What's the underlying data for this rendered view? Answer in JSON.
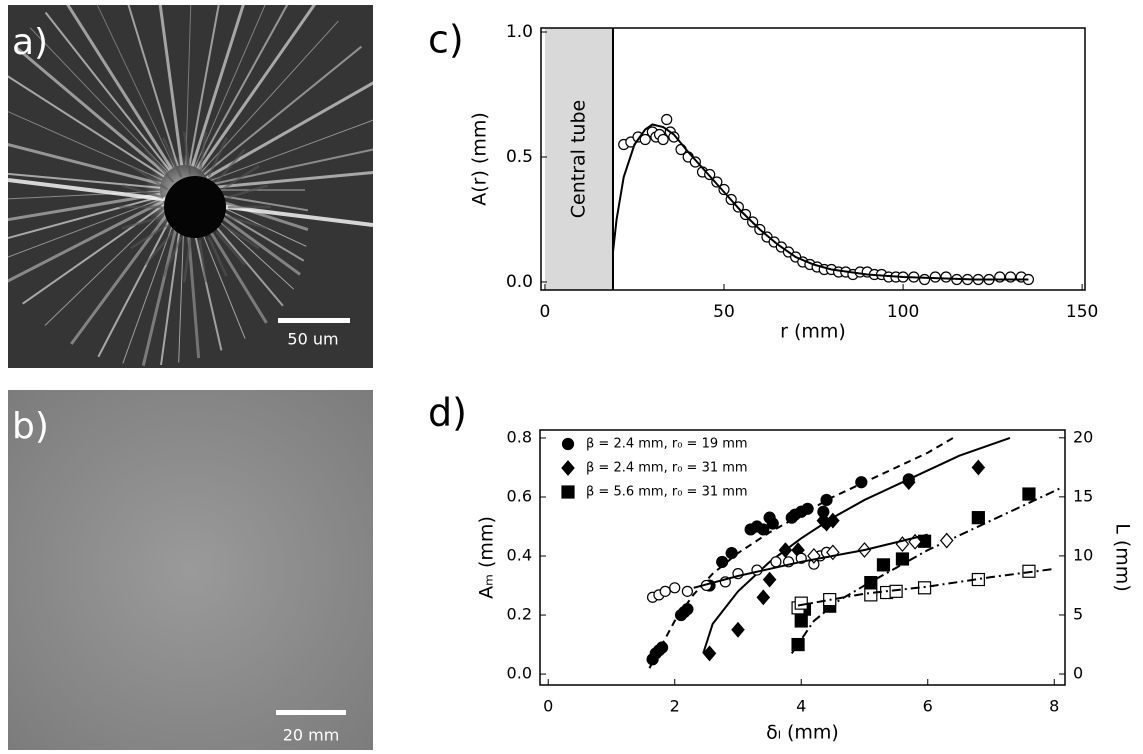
{
  "panels": {
    "a": {
      "label": "a)",
      "scale_bar": "50 um"
    },
    "b": {
      "label": "b)",
      "scale_bar": "20 mm"
    }
  },
  "chart_data": [
    {
      "type": "scatter",
      "panel_label": "c)",
      "xlabel": "r (mm)",
      "ylabel": "A(r) (mm)",
      "xlim": [
        -1.1,
        150.8
      ],
      "xticks": [
        0,
        50,
        100,
        150
      ],
      "ylim": [
        -0.032,
        1.016
      ],
      "yticks": [
        {
          "value": 0,
          "label": "0.0"
        },
        0.5,
        {
          "value": 1,
          "label": "1.0"
        }
      ],
      "shaded_region": {
        "label": "Central tube",
        "x": [
          0,
          19
        ]
      },
      "series": [
        {
          "style": "markers",
          "marker": "circle",
          "filled": false,
          "color": "#000000",
          "x": [
            22,
            24,
            26,
            28,
            30,
            31,
            32,
            33,
            34,
            35,
            36,
            38,
            40,
            42,
            44,
            46,
            48,
            50,
            52,
            54,
            56,
            58,
            60,
            62,
            64,
            66,
            68,
            70,
            72,
            74,
            76,
            78,
            80,
            82,
            84,
            86,
            88,
            90,
            92,
            94,
            96,
            98,
            100,
            103,
            106,
            109,
            112,
            115,
            118,
            121,
            124,
            127,
            130,
            133,
            135
          ],
          "values": [
            0.55,
            0.56,
            0.58,
            0.57,
            0.6,
            0.58,
            0.59,
            0.57,
            0.65,
            0.6,
            0.58,
            0.53,
            0.5,
            0.48,
            0.44,
            0.43,
            0.4,
            0.37,
            0.33,
            0.3,
            0.27,
            0.24,
            0.21,
            0.18,
            0.16,
            0.14,
            0.12,
            0.1,
            0.08,
            0.07,
            0.06,
            0.05,
            0.05,
            0.04,
            0.04,
            0.03,
            0.04,
            0.04,
            0.03,
            0.03,
            0.02,
            0.02,
            0.02,
            0.02,
            0.01,
            0.02,
            0.02,
            0.01,
            0.01,
            0.01,
            0.01,
            0.02,
            0.02,
            0.02,
            0.01
          ]
        },
        {
          "style": "line",
          "dash": "solid",
          "color": "#000000",
          "x": [
            19,
            20,
            22,
            25,
            28,
            30,
            33,
            36,
            40,
            45,
            50,
            55,
            60,
            65,
            70,
            75,
            80,
            90,
            100,
            110,
            120,
            135
          ],
          "values": [
            0.12,
            0.25,
            0.42,
            0.55,
            0.61,
            0.63,
            0.62,
            0.59,
            0.52,
            0.44,
            0.36,
            0.28,
            0.21,
            0.15,
            0.1,
            0.07,
            0.05,
            0.03,
            0.02,
            0.015,
            0.01,
            0.01
          ]
        }
      ]
    },
    {
      "type": "scatter",
      "panel_label": "d)",
      "xlabel": "δₗ (mm)",
      "ylabel": "Aₘ (mm)",
      "y2label": "L (mm)",
      "xlim": [
        -0.13,
        8.17
      ],
      "xticks": [
        0,
        2,
        4,
        6,
        8
      ],
      "ylim": [
        -0.037,
        0.827
      ],
      "yticks": [
        {
          "value": 0,
          "label": "0.0"
        },
        0.2,
        0.4,
        0.6,
        0.8
      ],
      "y2lim": [
        -0.93,
        20.66
      ],
      "y2ticks": [
        0,
        5,
        10,
        15,
        20
      ],
      "legend": "upper left",
      "series": [
        {
          "name": "β = 2.4 mm, r₀ = 19 mm",
          "style": "markers",
          "marker": "circle",
          "filled": true,
          "color": "#000000",
          "x": [
            1.65,
            1.7,
            1.75,
            1.8,
            2.1,
            2.15,
            2.2,
            2.55,
            2.75,
            2.9,
            3.2,
            3.3,
            3.4,
            3.5,
            3.55,
            3.85,
            3.9,
            4.0,
            4.1,
            4.35,
            4.4,
            4.95,
            5.7
          ],
          "values": [
            0.05,
            0.07,
            0.08,
            0.09,
            0.2,
            0.21,
            0.22,
            0.3,
            0.38,
            0.41,
            0.49,
            0.5,
            0.49,
            0.53,
            0.51,
            0.53,
            0.54,
            0.55,
            0.56,
            0.55,
            0.59,
            0.65,
            0.66
          ]
        },
        {
          "name": "β = 2.4 mm, r₀ = 31 mm",
          "style": "markers",
          "marker": "diamond",
          "filled": true,
          "color": "#000000",
          "x": [
            2.55,
            3.0,
            3.4,
            3.5,
            3.75,
            3.95,
            4.35,
            4.4,
            4.5,
            5.7,
            6.8
          ],
          "values": [
            0.07,
            0.15,
            0.26,
            0.32,
            0.42,
            0.42,
            0.52,
            0.51,
            0.52,
            0.65,
            0.7
          ]
        },
        {
          "name": "β = 5.6 mm, r₀ = 31 mm",
          "style": "markers",
          "marker": "square",
          "filled": true,
          "color": "#000000",
          "x": [
            3.95,
            4.0,
            4.05,
            4.45,
            5.1,
            5.3,
            5.6,
            5.95,
            6.8,
            7.6
          ],
          "values": [
            0.1,
            0.18,
            0.22,
            0.23,
            0.31,
            0.37,
            0.39,
            0.45,
            0.53,
            0.61
          ]
        },
        {
          "style": "line",
          "dash": "dashed",
          "color": "#000000",
          "x": [
            1.6,
            1.8,
            2,
            2.3,
            2.6,
            3,
            3.5,
            4,
            4.5,
            5,
            5.5,
            6,
            6.4
          ],
          "values": [
            0.02,
            0.1,
            0.18,
            0.27,
            0.34,
            0.41,
            0.48,
            0.54,
            0.6,
            0.65,
            0.7,
            0.75,
            0.8
          ]
        },
        {
          "style": "line",
          "dash": "solid",
          "color": "#000000",
          "x": [
            2.45,
            2.6,
            3,
            3.5,
            4,
            4.5,
            5,
            5.5,
            6,
            6.5,
            7.3
          ],
          "values": [
            0.07,
            0.17,
            0.28,
            0.38,
            0.46,
            0.53,
            0.59,
            0.64,
            0.69,
            0.74,
            0.8
          ]
        },
        {
          "style": "line",
          "dash": "dashdot",
          "color": "#000000",
          "x": [
            3.85,
            4.2,
            4.6,
            5,
            5.5,
            6,
            6.5,
            7,
            7.5,
            8.1
          ],
          "values": [
            0.07,
            0.18,
            0.25,
            0.3,
            0.36,
            0.42,
            0.47,
            0.52,
            0.57,
            0.63
          ]
        },
        {
          "style": "markers",
          "marker": "circle",
          "filled": false,
          "color": "#000000",
          "axis": "y2",
          "x": [
            1.65,
            1.75,
            1.85,
            2.0,
            2.2,
            2.5,
            2.8,
            3.0,
            3.3,
            3.6,
            3.8,
            4.0,
            4.2,
            4.3,
            4.4
          ],
          "values": [
            6.5,
            6.7,
            7.0,
            7.3,
            7.0,
            7.5,
            7.8,
            8.5,
            8.8,
            9.5,
            9.5,
            9.8,
            9.3,
            10.0,
            10.3
          ]
        },
        {
          "style": "markers",
          "marker": "diamond",
          "filled": false,
          "color": "#000000",
          "axis": "y2",
          "x": [
            4.2,
            4.5,
            5.0,
            5.6,
            5.8,
            6.3
          ],
          "values": [
            10,
            10.3,
            10.5,
            11.0,
            11.2,
            11.3
          ]
        },
        {
          "style": "markers",
          "marker": "square",
          "filled": false,
          "color": "#000000",
          "axis": "y2",
          "x": [
            3.95,
            4.0,
            4.45,
            5.1,
            5.35,
            5.5,
            5.95,
            6.8,
            7.6
          ],
          "values": [
            5.6,
            6.0,
            6.3,
            6.7,
            6.9,
            7.0,
            7.3,
            8.0,
            8.7
          ]
        },
        {
          "style": "line",
          "dash": "solid",
          "color": "#000000",
          "axis": "y2",
          "x": [
            2.3,
            3,
            4,
            5,
            6
          ],
          "values": [
            7.3,
            8.3,
            9.5,
            10.5,
            11.8
          ]
        },
        {
          "style": "line",
          "dash": "dashdot",
          "color": "#000000",
          "axis": "y2",
          "x": [
            3.95,
            5,
            6,
            7,
            8
          ],
          "values": [
            5.8,
            6.8,
            7.4,
            8.2,
            8.9
          ]
        }
      ]
    }
  ]
}
